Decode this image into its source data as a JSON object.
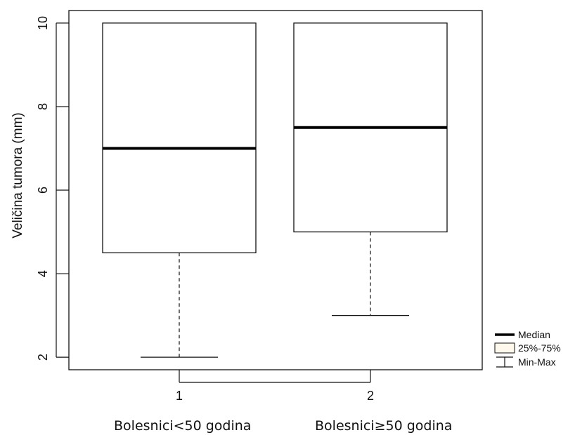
{
  "chart_data": {
    "type": "box",
    "ylabel": "Veličina tumora (mm)",
    "xlabel": "",
    "ylim": [
      1.7,
      10.3
    ],
    "yticks": [
      2,
      4,
      6,
      8,
      10
    ],
    "grid": false,
    "categories": [
      "1",
      "2"
    ],
    "category_descriptions": [
      "Bolesnici<50 godina",
      "Bolesnici≥50 godina"
    ],
    "boxes": [
      {
        "category": "1",
        "min": 2,
        "q1": 4.5,
        "median": 7,
        "q3": 10,
        "max": 10
      },
      {
        "category": "2",
        "min": 3,
        "q1": 5,
        "median": 7.5,
        "q3": 10,
        "max": 10
      }
    ],
    "legend": {
      "placement": "bottom-right",
      "items": [
        {
          "key": "median",
          "label": "Median"
        },
        {
          "key": "box",
          "label": "25%-75%",
          "color": "#fff8ec"
        },
        {
          "key": "whisker",
          "label": "Min-Max"
        }
      ]
    }
  }
}
